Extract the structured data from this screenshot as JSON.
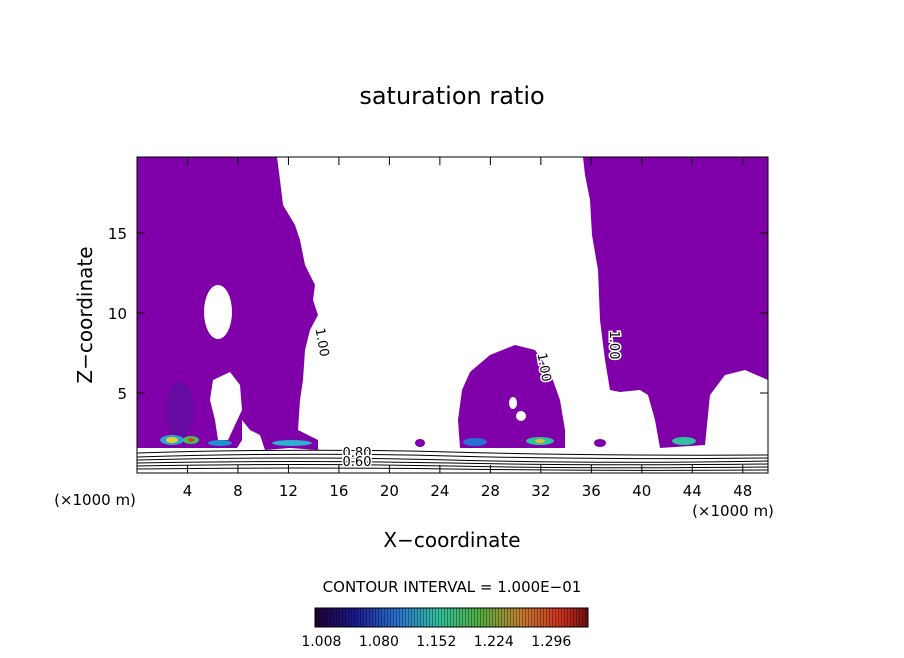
{
  "chart_data": {
    "type": "contour",
    "title": "saturation ratio",
    "xlabel": "X−coordinate",
    "ylabel": "Z−coordinate",
    "x_unit": "(×1000 m)",
    "xlim": [
      0,
      50
    ],
    "ylim": [
      0,
      19.75
    ],
    "xticks": [
      4,
      8,
      12,
      16,
      20,
      24,
      28,
      32,
      36,
      40,
      44,
      48
    ],
    "yticks": [
      5,
      10,
      15
    ],
    "fill_color": "#7f00a8",
    "contour_labels": [
      {
        "value": 1,
        "label": "1.00"
      },
      {
        "value": 1,
        "label": "1.00"
      },
      {
        "value": 1,
        "label": "1.00"
      },
      {
        "value": 0.8,
        "label": "0.80"
      },
      {
        "value": 0.6,
        "label": "0.60"
      }
    ],
    "contour_interval": "CONTOUR INTERVAL = 1.000E−01",
    "colorbar": {
      "lim": [
        1.0,
        1.342
      ],
      "ticks": [
        1.008,
        {
          "value": 1.08,
          "label": "1.080"
        },
        1.152,
        1.224,
        1.296
      ]
    }
  }
}
